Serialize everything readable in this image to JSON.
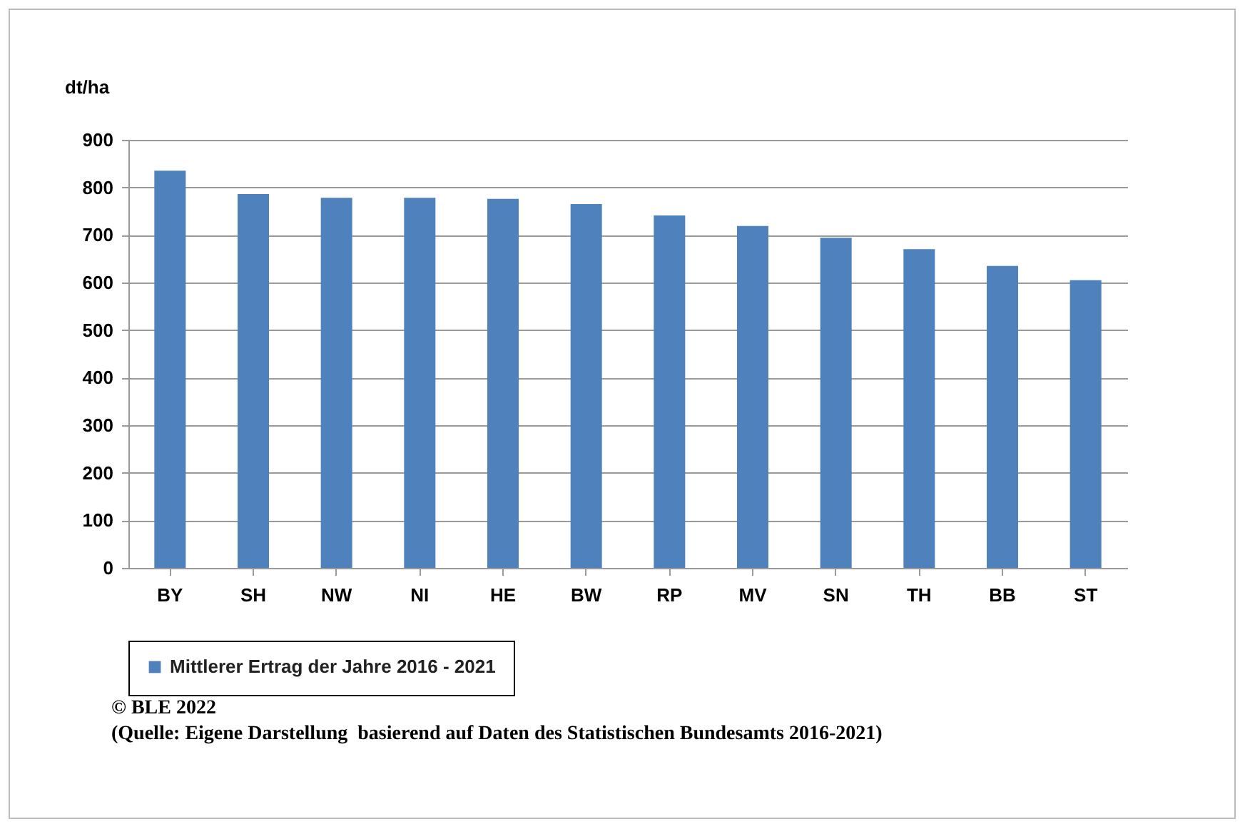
{
  "chart_data": {
    "type": "bar",
    "ylabel": "dt/ha",
    "categories": [
      "BY",
      "SH",
      "NW",
      "NI",
      "HE",
      "BW",
      "RP",
      "MV",
      "SN",
      "TH",
      "BB",
      "ST"
    ],
    "series": [
      {
        "name": "Mittlerer Ertrag der Jahre 2016 - 2021",
        "color": "#4f81bd",
        "values": [
          835,
          786,
          778,
          778,
          776,
          765,
          741,
          719,
          694,
          670,
          635,
          605
        ]
      }
    ],
    "ylim": [
      0,
      900
    ],
    "yticks": [
      0,
      100,
      200,
      300,
      400,
      500,
      600,
      700,
      800,
      900
    ],
    "grid": "y",
    "legend": "bottom",
    "annotations": [
      "© BLE 2022",
      "(Quelle: Eigene Darstellung  basierend auf Daten des Statistischen Bundesamts 2016-2021)"
    ]
  }
}
